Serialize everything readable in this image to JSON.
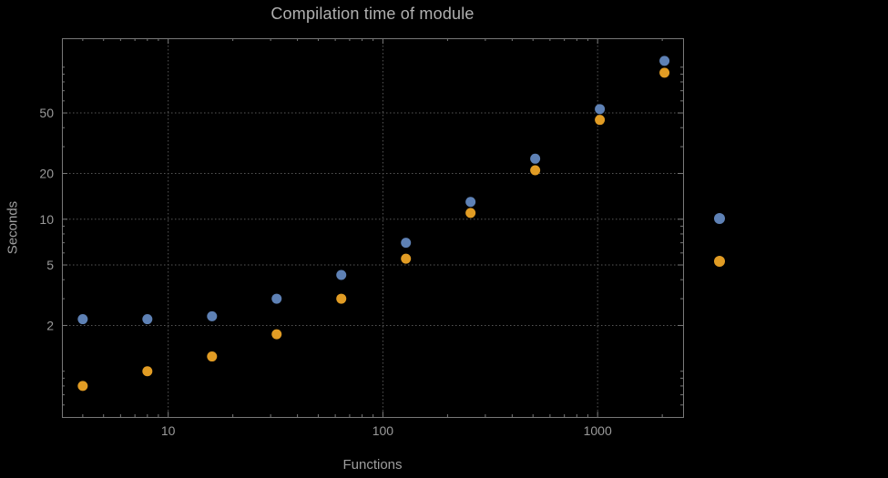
{
  "chart_data": {
    "type": "scatter",
    "title": "Compilation time of module",
    "xlabel": "Functions",
    "ylabel": "Seconds",
    "x_scale": "log",
    "y_scale": "log",
    "xlim": [
      3.2,
      2500
    ],
    "ylim": [
      0.5,
      155
    ],
    "grid": true,
    "grid_style": "dotted",
    "x": [
      4,
      8,
      16,
      32,
      64,
      128,
      256,
      512,
      1024,
      2048
    ],
    "series": [
      {
        "name": "blue",
        "color": "#5e81b5",
        "values": [
          2.2,
          2.2,
          2.3,
          3.0,
          4.3,
          7.0,
          13,
          25,
          53,
          110
        ]
      },
      {
        "name": "orange",
        "color": "#e19c24",
        "values": [
          0.8,
          1.0,
          1.25,
          1.75,
          3.0,
          5.5,
          11,
          21,
          45,
          92
        ]
      }
    ],
    "x_ticks": [
      {
        "value": 10,
        "label": "10"
      },
      {
        "value": 100,
        "label": "100"
      },
      {
        "value": 1000,
        "label": "1000"
      }
    ],
    "y_ticks": [
      {
        "value": 2,
        "label": "2"
      },
      {
        "value": 5,
        "label": "5"
      },
      {
        "value": 10,
        "label": "10"
      },
      {
        "value": 20,
        "label": "20"
      },
      {
        "value": 50,
        "label": "50"
      }
    ],
    "legend_position": "right-outside"
  },
  "colors": {
    "background": "#000000",
    "frame": "#787878",
    "grid": "#565656",
    "tick_text": "#9a9a9a",
    "title_text": "#b0b0b0"
  }
}
